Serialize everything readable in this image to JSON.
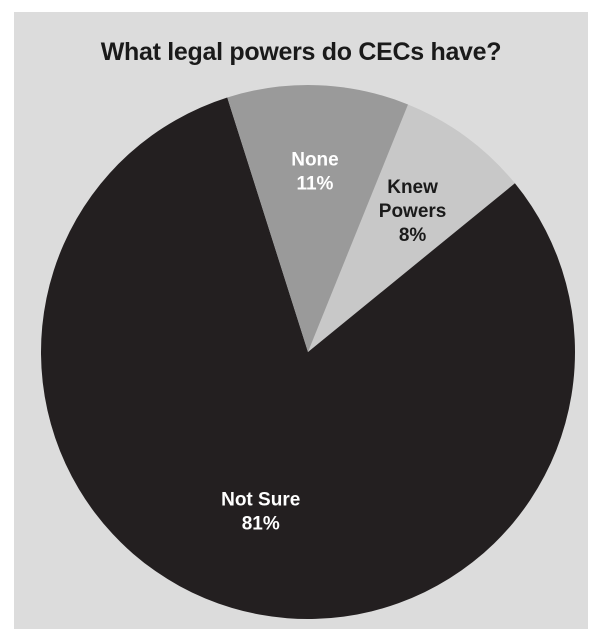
{
  "chart_data": {
    "type": "pie",
    "title": "What legal powers do CECs have?",
    "slices": [
      {
        "label_lines": [
          "Knew",
          "Powers"
        ],
        "pct_label": "8%",
        "value": 8,
        "color": "#c8c8c8",
        "text_color": "#1a1a1a"
      },
      {
        "label_lines": [
          "Not Sure"
        ],
        "pct_label": "81%",
        "value": 81,
        "color": "#231f20",
        "text_color": "#ffffff"
      },
      {
        "label_lines": [
          "None"
        ],
        "pct_label": "11%",
        "value": 11,
        "color": "#9a9a9a",
        "text_color": "#ffffff"
      }
    ],
    "background": "#dcdcdc"
  }
}
